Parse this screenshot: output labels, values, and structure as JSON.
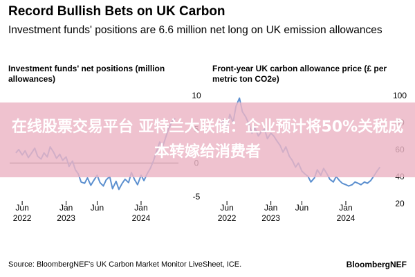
{
  "header": {
    "title": "Record Bullish Bets on UK Carbon",
    "subtitle": "Investment funds' positions are 6.6 million net long on UK emission allowances"
  },
  "banner": {
    "text": "在线股票交易平台 亚特兰大联储：企业预计将50%关税成本转嫁给消费者"
  },
  "footer": {
    "source": "Source: BloombergNEF's UK Carbon Market Monitor LiveSheet, ICE.",
    "brand": "BloombergNEF"
  },
  "colors": {
    "series": "#5b8fcf",
    "zero_line": "#000000"
  },
  "chart_data": [
    {
      "type": "line",
      "title": "Investment funds' net positions (million allowances)",
      "x_ticks": [
        {
          "date": "2022-06",
          "label": "Jun\n2022"
        },
        {
          "date": "2023-01",
          "label": "Jan\n2023"
        },
        {
          "date": "2023-06",
          "label": "Jun"
        },
        {
          "date": "2024-01",
          "label": "Jan\n2024"
        }
      ],
      "xlim": [
        "2022-04",
        "2024-07"
      ],
      "ylim": [
        -6,
        11
      ],
      "y_ticks": [
        10,
        5,
        0,
        -5
      ],
      "zero_line": true,
      "series": [
        {
          "x": [
            "2022-05-01",
            "2022-05-15",
            "2022-06-01",
            "2022-06-15",
            "2022-07-01",
            "2022-07-15",
            "2022-08-01",
            "2022-08-15",
            "2022-09-01",
            "2022-09-15",
            "2022-10-01",
            "2022-10-15",
            "2022-11-01",
            "2022-11-15",
            "2022-12-01",
            "2022-12-15",
            "2023-01-01",
            "2023-01-15",
            "2023-02-01",
            "2023-02-15",
            "2023-03-01",
            "2023-03-15",
            "2023-04-01",
            "2023-04-15",
            "2023-05-01",
            "2023-05-15",
            "2023-06-01",
            "2023-06-15",
            "2023-07-01",
            "2023-07-15",
            "2023-08-01",
            "2023-08-15",
            "2023-09-01",
            "2023-09-15",
            "2023-10-01",
            "2023-10-15",
            "2023-11-01",
            "2023-11-15",
            "2023-12-01",
            "2023-12-15",
            "2024-01-01",
            "2024-01-15",
            "2024-02-01",
            "2024-02-15",
            "2024-03-01",
            "2024-03-15",
            "2024-04-01",
            "2024-04-15",
            "2024-05-01",
            "2024-05-15",
            "2024-06-01",
            "2024-06-15"
          ],
          "y": [
            1.5,
            2.0,
            1.2,
            1.8,
            0.8,
            1.4,
            2.2,
            1.0,
            0.6,
            1.5,
            0.9,
            2.4,
            1.6,
            0.7,
            1.3,
            0.4,
            0.9,
            -0.5,
            0.3,
            -1.0,
            -1.6,
            -2.8,
            -3.0,
            -2.2,
            -3.3,
            -2.6,
            -1.8,
            -2.9,
            -3.4,
            -2.5,
            -2.0,
            -3.8,
            -2.7,
            -3.9,
            -3.0,
            -2.4,
            -2.9,
            -1.4,
            -2.5,
            -3.2,
            -1.8,
            -2.6,
            -1.5,
            -0.8,
            0.3,
            1.6,
            3.1,
            2.4,
            3.9,
            5.1,
            6.2,
            6.6
          ]
        }
      ]
    },
    {
      "type": "line",
      "title": "Front-year UK carbon allowance price (£ per metric ton CO2e)",
      "x_ticks": [
        {
          "date": "2022-06",
          "label": "Jun\n2022"
        },
        {
          "date": "2023-01",
          "label": "Jan\n2023"
        },
        {
          "date": "2023-06",
          "label": "Jun"
        },
        {
          "date": "2024-01",
          "label": "Jan\n2024"
        }
      ],
      "xlim": [
        "2022-04",
        "2024-07"
      ],
      "ylim": [
        20,
        105
      ],
      "y_ticks": [
        100,
        80,
        60,
        40,
        20
      ],
      "zero_line": false,
      "series": [
        {
          "x": [
            "2022-05-01",
            "2022-05-15",
            "2022-06-01",
            "2022-06-15",
            "2022-07-01",
            "2022-07-15",
            "2022-08-01",
            "2022-08-15",
            "2022-09-01",
            "2022-09-15",
            "2022-10-01",
            "2022-10-15",
            "2022-11-01",
            "2022-11-15",
            "2022-12-01",
            "2022-12-15",
            "2023-01-01",
            "2023-01-15",
            "2023-02-01",
            "2023-02-15",
            "2023-03-01",
            "2023-03-15",
            "2023-04-01",
            "2023-04-15",
            "2023-05-01",
            "2023-05-15",
            "2023-06-01",
            "2023-06-15",
            "2023-07-01",
            "2023-07-15",
            "2023-08-01",
            "2023-08-15",
            "2023-09-01",
            "2023-09-15",
            "2023-10-01",
            "2023-10-15",
            "2023-11-01",
            "2023-11-15",
            "2023-12-01",
            "2023-12-15",
            "2024-01-01",
            "2024-01-15",
            "2024-02-01",
            "2024-02-15",
            "2024-03-01",
            "2024-03-15",
            "2024-04-01",
            "2024-04-15",
            "2024-05-01",
            "2024-05-15",
            "2024-06-01",
            "2024-06-15"
          ],
          "y": [
            78,
            82,
            76,
            86,
            80,
            92,
            98,
            88,
            84,
            79,
            72,
            76,
            70,
            73,
            75,
            68,
            72,
            70,
            66,
            63,
            58,
            62,
            55,
            52,
            47,
            50,
            44,
            42,
            40,
            36,
            39,
            45,
            41,
            46,
            42,
            38,
            36,
            40,
            37,
            35,
            34,
            33,
            34,
            36,
            35,
            34,
            36,
            35,
            37,
            40,
            44,
            47
          ]
        }
      ]
    }
  ]
}
